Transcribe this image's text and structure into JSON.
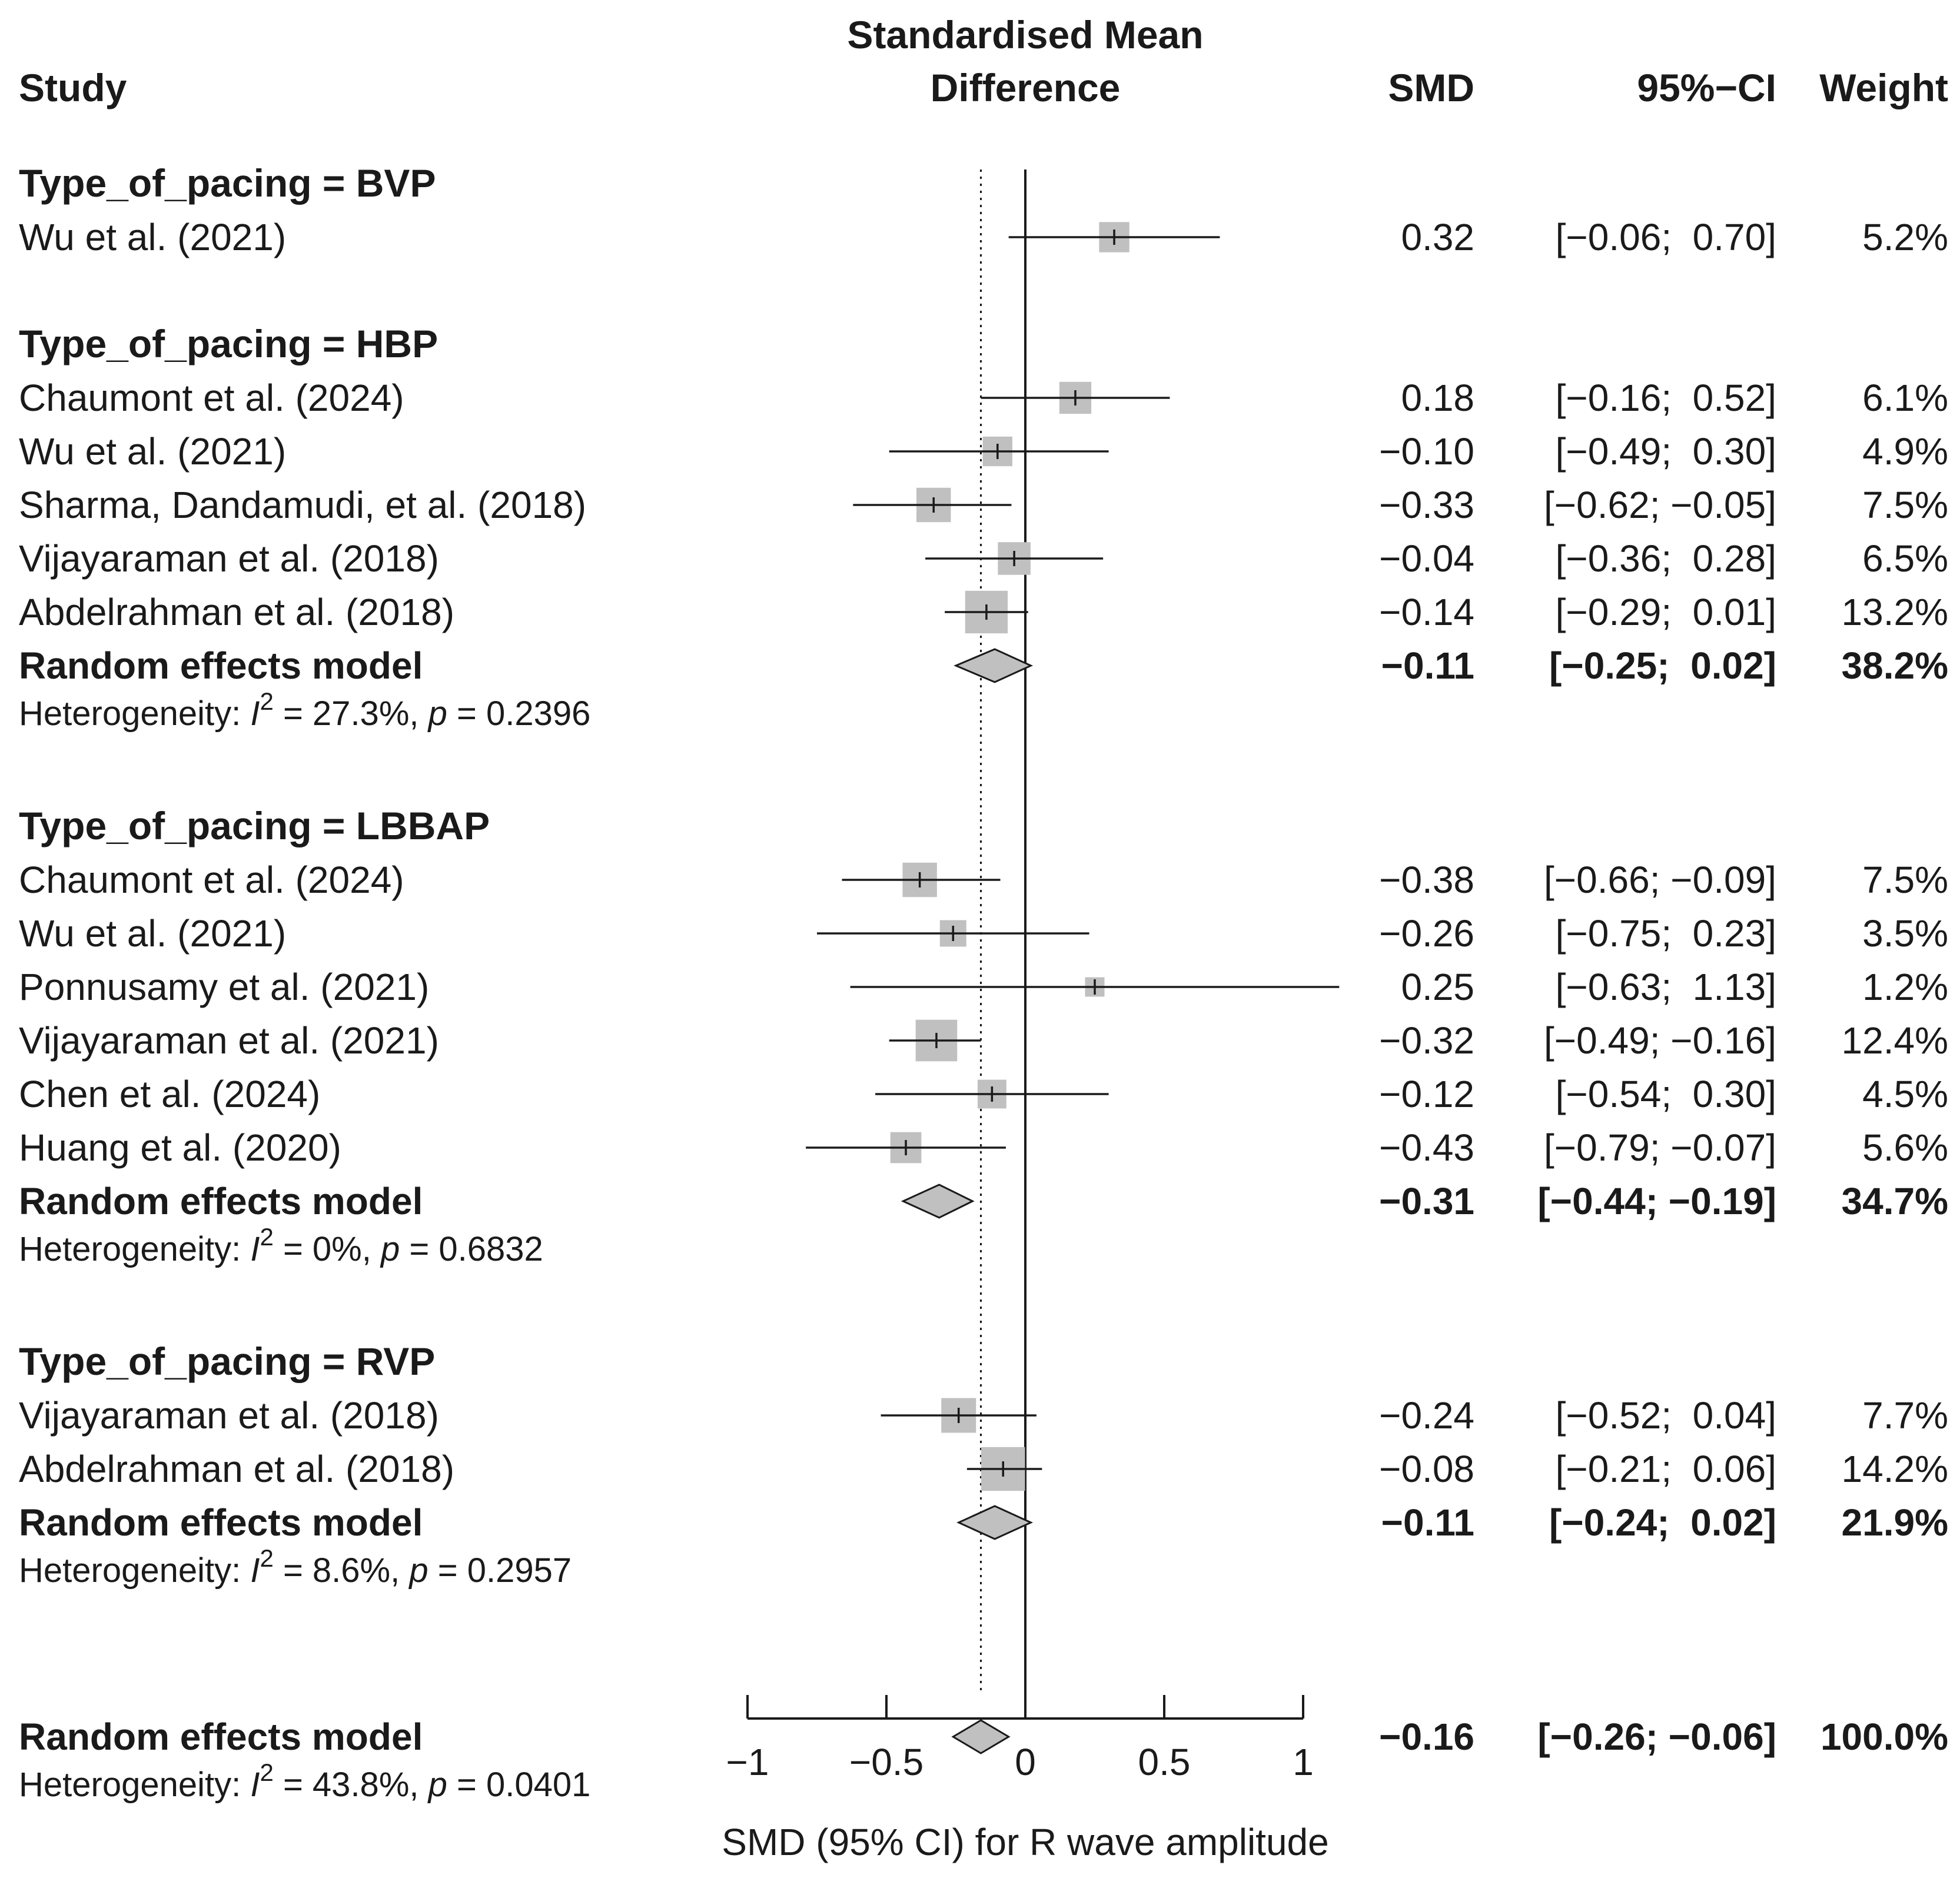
{
  "chart_data": {
    "type": "forest",
    "title": "Standardised Mean Difference",
    "columns": {
      "study": "Study",
      "effect_line1": "Standardised Mean",
      "effect_line2": "Difference",
      "smd": "SMD",
      "ci": "95%−CI",
      "weight": "Weight"
    },
    "xlabel": "SMD (95% CI) for R wave amplitude",
    "xlim": [
      -1,
      1
    ],
    "xticks": [
      -1,
      -0.5,
      0,
      0.5,
      1
    ],
    "xtick_labels": [
      "−1",
      "−0.5",
      "0",
      "0.5",
      "1"
    ],
    "reference_line": -0.16,
    "rows": [
      {
        "kind": "group",
        "label": "Type_of_pacing = BVP"
      },
      {
        "kind": "study",
        "label": "Wu et al. (2021)",
        "smd": 0.32,
        "lo": -0.06,
        "hi": 0.7,
        "smd_text": "0.32",
        "ci_text": "[−0.06;  0.70]",
        "weight_text": "5.2%",
        "weight": 5.2
      },
      {
        "kind": "gap"
      },
      {
        "kind": "group",
        "label": "Type_of_pacing = HBP"
      },
      {
        "kind": "study",
        "label": "Chaumont et al. (2024)",
        "smd": 0.18,
        "lo": -0.16,
        "hi": 0.52,
        "smd_text": "0.18",
        "ci_text": "[−0.16;  0.52]",
        "weight_text": "6.1%",
        "weight": 6.1
      },
      {
        "kind": "study",
        "label": "Wu et al. (2021)",
        "smd": -0.1,
        "lo": -0.49,
        "hi": 0.3,
        "smd_text": "−0.10",
        "ci_text": "[−0.49;  0.30]",
        "weight_text": "4.9%",
        "weight": 4.9
      },
      {
        "kind": "study",
        "label": "Sharma, Dandamudi, et al. (2018)",
        "smd": -0.33,
        "lo": -0.62,
        "hi": -0.05,
        "smd_text": "−0.33",
        "ci_text": "[−0.62; −0.05]",
        "weight_text": "7.5%",
        "weight": 7.5
      },
      {
        "kind": "study",
        "label": "Vijayaraman et al. (2018)",
        "smd": -0.04,
        "lo": -0.36,
        "hi": 0.28,
        "smd_text": "−0.04",
        "ci_text": "[−0.36;  0.28]",
        "weight_text": "6.5%",
        "weight": 6.5
      },
      {
        "kind": "study",
        "label": "Abdelrahman et al. (2018)",
        "smd": -0.14,
        "lo": -0.29,
        "hi": 0.01,
        "smd_text": "−0.14",
        "ci_text": "[−0.29;  0.01]",
        "weight_text": "13.2%",
        "weight": 13.2
      },
      {
        "kind": "summary",
        "label": "Random effects model",
        "smd": -0.11,
        "lo": -0.25,
        "hi": 0.02,
        "smd_text": "−0.11",
        "ci_text": "[−0.25;  0.02]",
        "weight_text": "38.2%"
      },
      {
        "kind": "het",
        "prefix": "Heterogeneity: ",
        "i2": "I",
        "sup": "2",
        "mid": " = 27.3%, ",
        "p": "p",
        "rest": " = 0.2396"
      },
      {
        "kind": "gap"
      },
      {
        "kind": "group",
        "label": "Type_of_pacing = LBBAP"
      },
      {
        "kind": "study",
        "label": "Chaumont et al. (2024)",
        "smd": -0.38,
        "lo": -0.66,
        "hi": -0.09,
        "smd_text": "−0.38",
        "ci_text": "[−0.66; −0.09]",
        "weight_text": "7.5%",
        "weight": 7.5
      },
      {
        "kind": "study",
        "label": "Wu et al. (2021)",
        "smd": -0.26,
        "lo": -0.75,
        "hi": 0.23,
        "smd_text": "−0.26",
        "ci_text": "[−0.75;  0.23]",
        "weight_text": "3.5%",
        "weight": 3.5
      },
      {
        "kind": "study",
        "label": "Ponnusamy et al. (2021)",
        "smd": 0.25,
        "lo": -0.63,
        "hi": 1.13,
        "smd_text": "0.25",
        "ci_text": "[−0.63;  1.13]",
        "weight_text": "1.2%",
        "weight": 1.2
      },
      {
        "kind": "study",
        "label": "Vijayaraman et al. (2021)",
        "smd": -0.32,
        "lo": -0.49,
        "hi": -0.16,
        "smd_text": "−0.32",
        "ci_text": "[−0.49; −0.16]",
        "weight_text": "12.4%",
        "weight": 12.4
      },
      {
        "kind": "study",
        "label": "Chen et al. (2024)",
        "smd": -0.12,
        "lo": -0.54,
        "hi": 0.3,
        "smd_text": "−0.12",
        "ci_text": "[−0.54;  0.30]",
        "weight_text": "4.5%",
        "weight": 4.5
      },
      {
        "kind": "study",
        "label": "Huang et al. (2020)",
        "smd": -0.43,
        "lo": -0.79,
        "hi": -0.07,
        "smd_text": "−0.43",
        "ci_text": "[−0.79; −0.07]",
        "weight_text": "5.6%",
        "weight": 5.6
      },
      {
        "kind": "summary",
        "label": "Random effects model",
        "smd": -0.31,
        "lo": -0.44,
        "hi": -0.19,
        "smd_text": "−0.31",
        "ci_text": "[−0.44; −0.19]",
        "weight_text": "34.7%"
      },
      {
        "kind": "het",
        "prefix": "Heterogeneity: ",
        "i2": "I",
        "sup": "2",
        "mid": " = 0%, ",
        "p": "p",
        "rest": " = 0.6832"
      },
      {
        "kind": "gap"
      },
      {
        "kind": "group",
        "label": "Type_of_pacing = RVP"
      },
      {
        "kind": "study",
        "label": "Vijayaraman et al. (2018)",
        "smd": -0.24,
        "lo": -0.52,
        "hi": 0.04,
        "smd_text": "−0.24",
        "ci_text": "[−0.52;  0.04]",
        "weight_text": "7.7%",
        "weight": 7.7
      },
      {
        "kind": "study",
        "label": "Abdelrahman et al. (2018)",
        "smd": -0.08,
        "lo": -0.21,
        "hi": 0.06,
        "smd_text": "−0.08",
        "ci_text": "[−0.21;  0.06]",
        "weight_text": "14.2%",
        "weight": 14.2
      },
      {
        "kind": "summary",
        "label": "Random effects model",
        "smd": -0.11,
        "lo": -0.24,
        "hi": 0.02,
        "smd_text": "−0.11",
        "ci_text": "[−0.24;  0.02]",
        "weight_text": "21.9%"
      },
      {
        "kind": "het",
        "prefix": "Heterogeneity: ",
        "i2": "I",
        "sup": "2",
        "mid": " = 8.6%, ",
        "p": "p",
        "rest": " = 0.2957"
      },
      {
        "kind": "gap"
      },
      {
        "kind": "gap"
      },
      {
        "kind": "summary",
        "label": "Random effects model",
        "smd": -0.16,
        "lo": -0.26,
        "hi": -0.06,
        "smd_text": "−0.16",
        "ci_text": "[−0.26; −0.06]",
        "weight_text": "100.0%"
      },
      {
        "kind": "het",
        "prefix": "Heterogeneity: ",
        "i2": "I",
        "sup": "2",
        "mid": " = 43.8%, ",
        "p": "p",
        "rest": " = 0.0401"
      }
    ],
    "colors": {
      "square": "#c0c0c0",
      "diamond": "#c0c0c0",
      "line": "#1a1a1a"
    }
  }
}
